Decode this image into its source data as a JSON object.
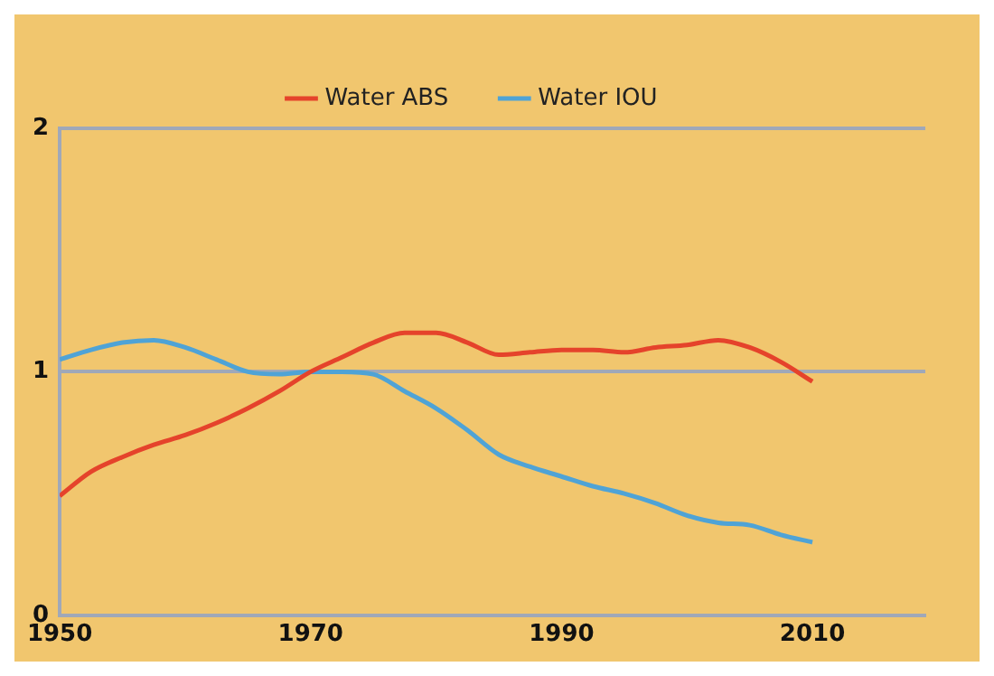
{
  "chart_data": {
    "type": "line",
    "x": [
      1950,
      1952.5,
      1955,
      1957.5,
      1960,
      1962.5,
      1965,
      1967.5,
      1970,
      1972.5,
      1975,
      1977.5,
      1980,
      1982.5,
      1985,
      1987.5,
      1990,
      1992.5,
      1995,
      1997.5,
      2000,
      2002.5,
      2005,
      2007.5,
      2010
    ],
    "series": [
      {
        "name": "Water ABS",
        "color": "#e5432b",
        "values": [
          0.49,
          0.59,
          0.65,
          0.7,
          0.74,
          0.79,
          0.85,
          0.92,
          1.0,
          1.06,
          1.12,
          1.16,
          1.16,
          1.12,
          1.07,
          1.08,
          1.09,
          1.09,
          1.08,
          1.1,
          1.11,
          1.13,
          1.1,
          1.04,
          0.96
        ]
      },
      {
        "name": "Water IOU",
        "color": "#4fa3d6",
        "values": [
          1.05,
          1.09,
          1.12,
          1.13,
          1.1,
          1.05,
          1.0,
          0.99,
          1.0,
          1.0,
          0.99,
          0.92,
          0.85,
          0.76,
          0.66,
          0.61,
          0.57,
          0.53,
          0.5,
          0.46,
          0.41,
          0.38,
          0.37,
          0.33,
          0.3
        ]
      }
    ],
    "xlim": [
      1950,
      2019
    ],
    "xticks": [
      1950,
      1970,
      1990,
      2010
    ],
    "ylim": [
      0,
      2
    ],
    "yticks": [
      0,
      1,
      2
    ],
    "grid": "y",
    "legend": "top",
    "marker": "none",
    "line_style": "solid"
  }
}
